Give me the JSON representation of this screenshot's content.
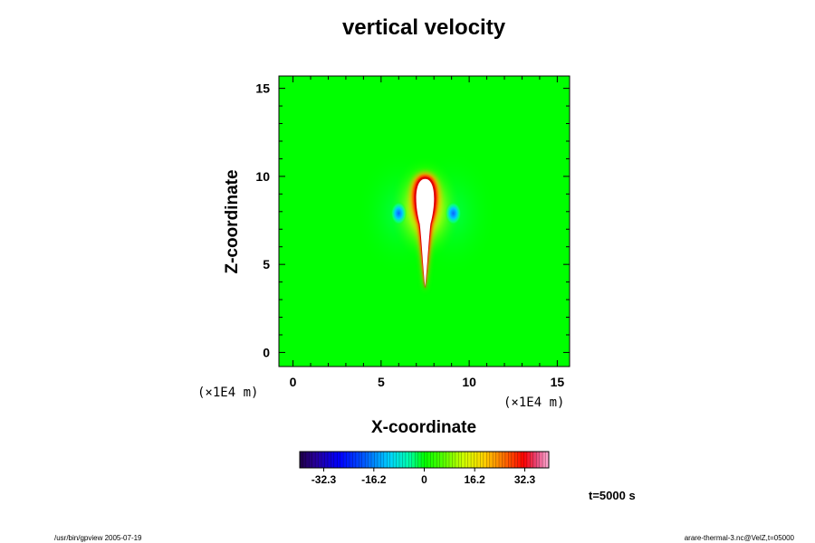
{
  "chart_data": {
    "type": "heatmap",
    "title": "vertical velocity",
    "xlabel": "X-coordinate",
    "ylabel": "Z-coordinate",
    "xlim": [
      -0.8,
      15.7
    ],
    "ylim": [
      -0.8,
      15.7
    ],
    "x_ticks": [
      0,
      5,
      10,
      15
    ],
    "y_ticks": [
      0,
      5,
      10,
      15
    ],
    "x_unit": "(×1E4 m)",
    "y_unit": "(×1E4 m)",
    "colorbar": {
      "range": [
        -40,
        40
      ],
      "ticks": [
        "-32.3",
        "-16.2",
        "0",
        "16.2",
        "32.3"
      ],
      "tick_values": [
        -32.3,
        -16.2,
        0,
        16.2,
        32.3
      ]
    },
    "features": [
      {
        "kind": "updraft_plume",
        "x": 7.5,
        "z_top": 9.9,
        "z_bottom": 3.7,
        "max_value": "above 40"
      },
      {
        "kind": "downdraft",
        "x": 6.0,
        "z": 7.9
      },
      {
        "kind": "downdraft",
        "x": 9.1,
        "z": 7.9
      }
    ],
    "grid": false
  },
  "annotation": {
    "time": "t=5000 s"
  },
  "footer": {
    "left": "/usr/bin/gpview 2005-07-19",
    "right": "arare-thermal-3.nc@VelZ,t=05000"
  }
}
